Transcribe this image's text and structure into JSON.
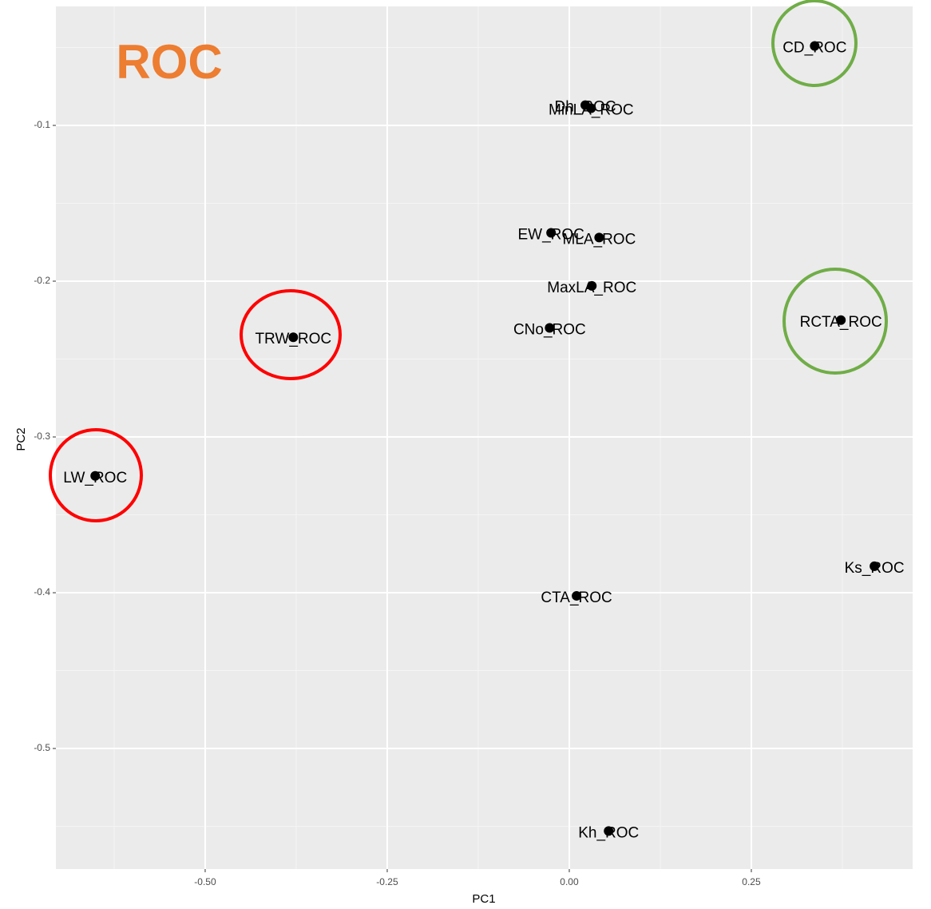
{
  "chart_data": {
    "type": "scatter",
    "annotation": "ROC",
    "labels": [
      "CD_ROC",
      "Dh_ROC",
      "MinLA_ROC",
      "EW_ROC",
      "MLA_ROC",
      "MaxLA_ROC",
      "CNo_ROC",
      "RCTA_ROC",
      "TRW_ROC",
      "LW_ROC",
      "Ks_ROC",
      "CTA_ROC",
      "Kh_ROC"
    ],
    "x": [
      0.337,
      0.022,
      0.03,
      -0.025,
      0.041,
      0.031,
      -0.027,
      0.373,
      -0.379,
      -0.651,
      0.419,
      0.01,
      0.054
    ],
    "values": [
      -0.049,
      -0.087,
      -0.089,
      -0.169,
      -0.172,
      -0.203,
      -0.23,
      -0.225,
      -0.236,
      -0.325,
      -0.383,
      -0.402,
      -0.553
    ],
    "color": "#000000",
    "xlabel": "PC1",
    "ylabel": "PC2",
    "xlim": [
      -0.705,
      0.4715
    ],
    "ylim": [
      -0.5774,
      -0.0236
    ],
    "xticks": [
      {
        "value": -0.5,
        "label": "-0.50"
      },
      {
        "value": -0.25,
        "label": "-0.25"
      },
      {
        "value": 0,
        "label": "0.00"
      },
      {
        "value": 0.25,
        "label": "0.25"
      }
    ],
    "yticks": [
      -0.1,
      -0.2,
      -0.3,
      -0.4,
      -0.5
    ],
    "grid": true
  }
}
